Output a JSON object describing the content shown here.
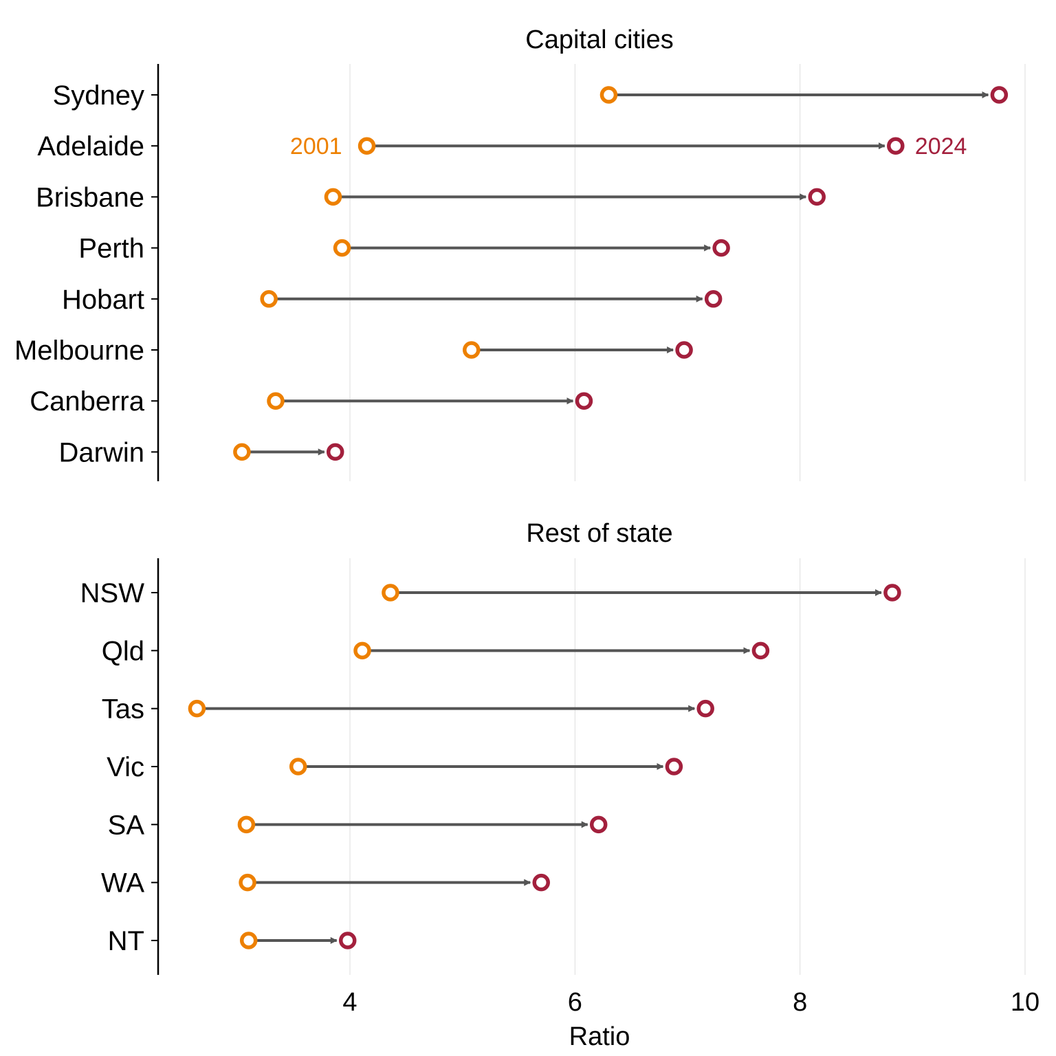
{
  "chart_data": {
    "type": "dumbbell",
    "xlabel": "Ratio",
    "x_ticks": [
      4,
      6,
      8,
      10
    ],
    "xlim": [
      2.3,
      10.05
    ],
    "grid": "vertical",
    "colors": {
      "start": "#ED8000",
      "end": "#A3203D",
      "connector": "#555555"
    },
    "annotations": {
      "start_label": "2001",
      "end_label": "2024"
    },
    "panels": [
      {
        "title": "Capital cities",
        "categories": [
          "Sydney",
          "Adelaide",
          "Brisbane",
          "Perth",
          "Hobart",
          "Melbourne",
          "Canberra",
          "Darwin"
        ],
        "series": [
          {
            "name": "2001",
            "values": [
              6.3,
              4.15,
              3.85,
              3.93,
              3.28,
              5.08,
              3.34,
              3.04
            ]
          },
          {
            "name": "2024",
            "values": [
              9.77,
              8.85,
              8.15,
              7.3,
              7.23,
              6.97,
              6.08,
              3.87
            ]
          }
        ]
      },
      {
        "title": "Rest of state",
        "categories": [
          "NSW",
          "Qld",
          "Tas",
          "Vic",
          "SA",
          "WA",
          "NT"
        ],
        "series": [
          {
            "name": "2001",
            "values": [
              4.36,
              4.11,
              2.64,
              3.54,
              3.08,
              3.09,
              3.1
            ]
          },
          {
            "name": "2024",
            "values": [
              8.82,
              7.65,
              7.16,
              6.88,
              6.21,
              5.7,
              3.98
            ]
          }
        ]
      }
    ]
  }
}
